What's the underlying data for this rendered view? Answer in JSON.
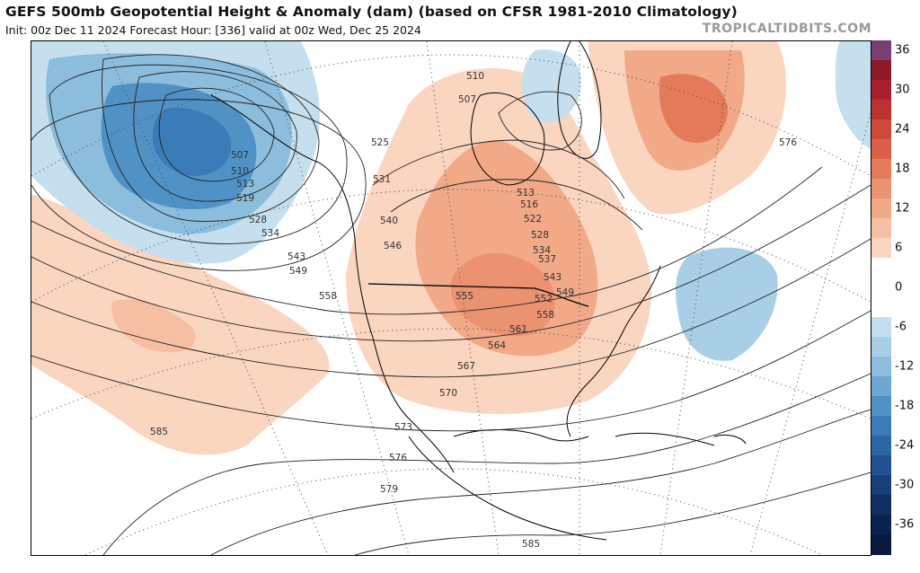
{
  "header": {
    "title": "GEFS 500mb Geopotential Height & Anomaly (dam) (based on CFSR 1981-2010 Climatology)",
    "subtitle": "Init: 00z Dec 11 2024   Forecast Hour: [336]   valid at 00z Wed, Dec 25 2024",
    "watermark": "TROPICALTIDBITS.COM"
  },
  "colorbar": {
    "levels": [
      {
        "label": "36",
        "color": "#7a3e73"
      },
      {
        "label": "",
        "color": "#8f1b2a"
      },
      {
        "label": "30",
        "color": "#a8202c"
      },
      {
        "label": "",
        "color": "#bf3232"
      },
      {
        "label": "24",
        "color": "#d0473c"
      },
      {
        "label": "",
        "color": "#dc6048"
      },
      {
        "label": "18",
        "color": "#e47a5a"
      },
      {
        "label": "",
        "color": "#eb9270"
      },
      {
        "label": "12",
        "color": "#f1a988"
      },
      {
        "label": "",
        "color": "#f6bfa4"
      },
      {
        "label": "6",
        "color": "#fad5c0"
      },
      {
        "label": "",
        "color": "#ffffff"
      },
      {
        "label": "0",
        "color": "#ffffff"
      },
      {
        "label": "",
        "color": "#ffffff"
      },
      {
        "label": "-6",
        "color": "#c6dfee"
      },
      {
        "label": "",
        "color": "#a9cfe6"
      },
      {
        "label": "-12",
        "color": "#8cbddd"
      },
      {
        "label": "",
        "color": "#6ea8d2"
      },
      {
        "label": "-18",
        "color": "#5092c6"
      },
      {
        "label": "",
        "color": "#3a7bb8"
      },
      {
        "label": "-24",
        "color": "#2d66a6"
      },
      {
        "label": "",
        "color": "#215190"
      },
      {
        "label": "-30",
        "color": "#183f78"
      },
      {
        "label": "",
        "color": "#102e60"
      },
      {
        "label": "-36",
        "color": "#0b2350"
      },
      {
        "label": "",
        "color": "#081a40"
      }
    ]
  },
  "contour_labels": [
    "507",
    "510",
    "513",
    "519",
    "528",
    "534",
    "543",
    "549",
    "558",
    "525",
    "531",
    "540",
    "546",
    "510",
    "507",
    "513",
    "516",
    "522",
    "528",
    "534",
    "537",
    "543",
    "549",
    "552",
    "555",
    "558",
    "561",
    "564",
    "567",
    "570",
    "573",
    "576",
    "579",
    "585",
    "585",
    "576"
  ],
  "anomaly_colors": {
    "positive_light": "#fad5c0",
    "positive_mid": "#f1a988",
    "positive_strong": "#e47a5a",
    "negative_light": "#c6dfee",
    "negative_mid": "#8cbddd",
    "negative_strong": "#5092c6",
    "negative_deep": "#3a7bb8"
  }
}
